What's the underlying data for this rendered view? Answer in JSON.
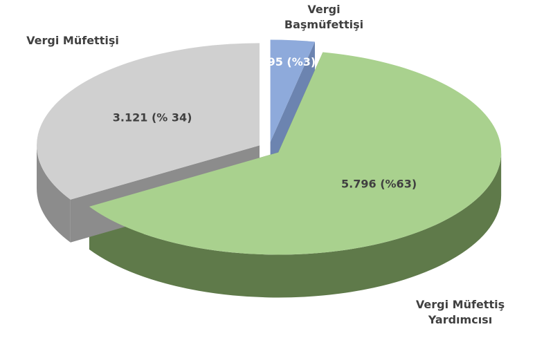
{
  "chart_data": {
    "type": "pie",
    "categories": [
      "Vergi Başmüfettişi",
      "Vergi Müfettiş Yardımcısı",
      "Vergi Müfettişi"
    ],
    "values": [
      295,
      5796,
      3121
    ],
    "value_labels": [
      "295 (%3)",
      "5.796  (%63)",
      "3.121  (% 34)"
    ],
    "colors": [
      "#8eaadb",
      "#a9d18e",
      "#d0d0d0"
    ],
    "side_colors": [
      "#6c84b0",
      "#5f7a4a",
      "#8c8c8c"
    ]
  }
}
